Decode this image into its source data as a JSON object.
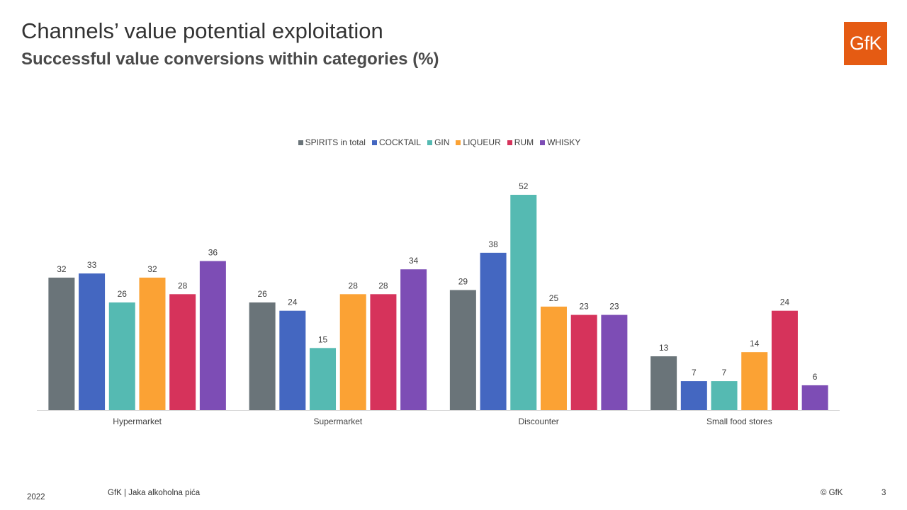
{
  "header": {
    "title": "Channels’ value potential exploitation",
    "subtitle": "Successful value conversions within categories (%)",
    "logo_text": "GfK"
  },
  "footer": {
    "year": "2022",
    "source": "GfK | Jaka alkoholna pića",
    "copyright": "© GfK",
    "page": "3"
  },
  "chart_data": {
    "type": "bar",
    "categories": [
      "Hypermarket",
      "Supermarket",
      "Discounter",
      "Small food stores"
    ],
    "series": [
      {
        "name": "SPIRITS in total",
        "color": "#6a7479",
        "values": [
          32,
          26,
          29,
          13
        ]
      },
      {
        "name": "COCKTAIL",
        "color": "#4467c1",
        "values": [
          33,
          24,
          38,
          7
        ]
      },
      {
        "name": "GIN",
        "color": "#55bab2",
        "values": [
          26,
          15,
          52,
          7
        ]
      },
      {
        "name": "LIQUEUR",
        "color": "#fba234",
        "values": [
          32,
          28,
          25,
          14
        ]
      },
      {
        "name": "RUM",
        "color": "#d6335b",
        "values": [
          28,
          28,
          23,
          24
        ]
      },
      {
        "name": "WHISKY",
        "color": "#7d4db5",
        "values": [
          36,
          34,
          23,
          6
        ]
      }
    ],
    "ylim": [
      0,
      52
    ],
    "data_labels": true,
    "grid": false,
    "legend_position": "top"
  }
}
